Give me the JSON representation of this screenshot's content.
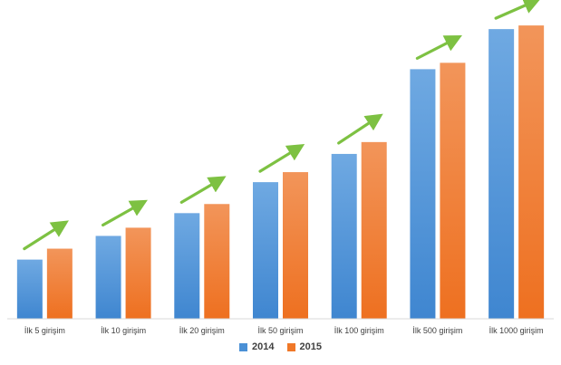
{
  "chart_data": {
    "type": "bar",
    "categories": [
      "İlk 5 girişim",
      "İlk 10 girişim",
      "İlk 20 girişim",
      "İlk 50 girişim",
      "İlk 100 girişim",
      "İlk 500 girişim",
      "İlk 1000 girişim"
    ],
    "series": [
      {
        "name": "2014",
        "values": [
          65,
          91,
          116,
          150,
          181,
          274,
          318
        ],
        "color": "#4a90d6"
      },
      {
        "name": "2015",
        "values": [
          77,
          100,
          126,
          161,
          194,
          281,
          322
        ],
        "color": "#f07828"
      }
    ],
    "ylim": [
      0,
      340
    ],
    "grid": false,
    "legend_position": "bottom",
    "trend_arrow_color": "#7dc142",
    "title": "",
    "xlabel": "",
    "ylabel": ""
  }
}
